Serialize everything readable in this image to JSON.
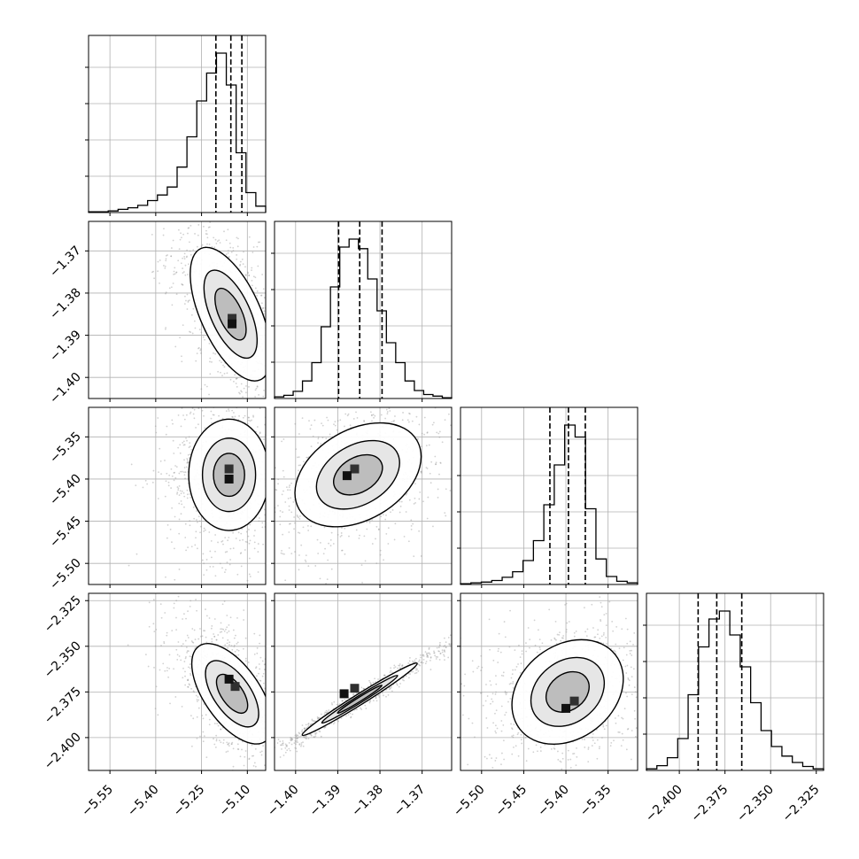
{
  "chart_data": {
    "type": "corner",
    "parameters": 4,
    "grid": true,
    "colors": {
      "background": "#ffffff",
      "ink": "#000000",
      "grid": "#b0b0b0",
      "scatter": "#9a9a9a"
    },
    "ranges": [
      [
        -5.62,
        -5.04
      ],
      [
        -1.405,
        -1.363
      ],
      [
        -5.525,
        -5.315
      ],
      [
        -2.418,
        -2.321
      ]
    ],
    "ticks": [
      [
        "−5.55",
        "−5.40",
        "−5.25",
        "−5.10"
      ],
      [
        "−1.40",
        "−1.39",
        "−1.38",
        "−1.37"
      ],
      [
        "−5.50",
        "−5.45",
        "−5.40",
        "−5.35"
      ],
      [
        "−2.400",
        "−2.375",
        "−2.350",
        "−2.325"
      ]
    ],
    "tick_values": [
      [
        -5.55,
        -5.4,
        -5.25,
        -5.1
      ],
      [
        -1.4,
        -1.39,
        -1.38,
        -1.37
      ],
      [
        -5.5,
        -5.45,
        -5.4,
        -5.35
      ],
      [
        -2.4,
        -2.375,
        -2.35,
        -2.325
      ]
    ],
    "histograms": [
      {
        "param": 0,
        "quantiles": [
          -5.203,
          -5.154,
          -5.118
        ],
        "counts": [
          1,
          1,
          2,
          4,
          6,
          9,
          15,
          22,
          32,
          57,
          95,
          140,
          175,
          200,
          160,
          75,
          25,
          8
        ]
      },
      {
        "param": 1,
        "quantiles": [
          -1.3898,
          -1.3848,
          -1.3795
        ],
        "counts": [
          2,
          4,
          9,
          22,
          45,
          90,
          140,
          190,
          200,
          188,
          150,
          110,
          70,
          45,
          22,
          10,
          5,
          3,
          1
        ]
      },
      {
        "param": 2,
        "quantiles": [
          -5.419,
          -5.397,
          -5.377
        ],
        "counts": [
          1,
          2,
          3,
          5,
          9,
          16,
          30,
          55,
          100,
          150,
          200,
          185,
          95,
          32,
          10,
          4,
          2
        ]
      },
      {
        "param": 3,
        "quantiles": [
          -2.3897,
          -2.3795,
          -2.3658
        ],
        "counts": [
          2,
          6,
          16,
          40,
          95,
          155,
          190,
          200,
          170,
          130,
          85,
          50,
          30,
          18,
          10,
          5,
          2
        ]
      }
    ],
    "joint": [
      {
        "row": 1,
        "col": 0,
        "mean": [
          -5.155,
          -1.385
        ],
        "sd": [
          0.06,
          0.0072
        ],
        "rho": -0.6,
        "peak_cells": [
          [
            -5.15,
            -1.386
          ],
          [
            -5.15,
            -1.3873
          ]
        ]
      },
      {
        "row": 2,
        "col": 0,
        "mean": [
          -5.16,
          -5.395
        ],
        "sd": [
          0.06,
          0.03
        ],
        "rho": 0.0,
        "peak_cells": [
          [
            -5.16,
            -5.388
          ],
          [
            -5.16,
            -5.4
          ]
        ]
      },
      {
        "row": 2,
        "col": 1,
        "mean": [
          -1.3852,
          -5.395
        ],
        "sd": [
          0.0068,
          0.028
        ],
        "rho": 0.35,
        "peak_cells": [
          [
            -1.386,
            -5.388
          ],
          [
            -1.3878,
            -5.396
          ]
        ]
      },
      {
        "row": 3,
        "col": 0,
        "mean": [
          -5.15,
          -2.376
        ],
        "sd": [
          0.06,
          0.0125
        ],
        "rho": -0.6,
        "peak_cells": [
          [
            -5.14,
            -2.372
          ],
          [
            -5.16,
            -2.368
          ]
        ]
      },
      {
        "row": 3,
        "col": 1,
        "mean": [
          -1.3848,
          -2.379
        ],
        "sd": [
          0.0062,
          0.009
        ],
        "rho": 0.985,
        "peak_cells": [
          [
            -1.386,
            -2.373
          ],
          [
            -1.3885,
            -2.376
          ]
        ]
      },
      {
        "row": 3,
        "col": 2,
        "mean": [
          -5.398,
          -2.375
        ],
        "sd": [
          0.03,
          0.013
        ],
        "rho": 0.25,
        "peak_cells": [
          [
            -5.39,
            -2.38
          ],
          [
            -5.4,
            -2.384
          ]
        ]
      }
    ]
  }
}
